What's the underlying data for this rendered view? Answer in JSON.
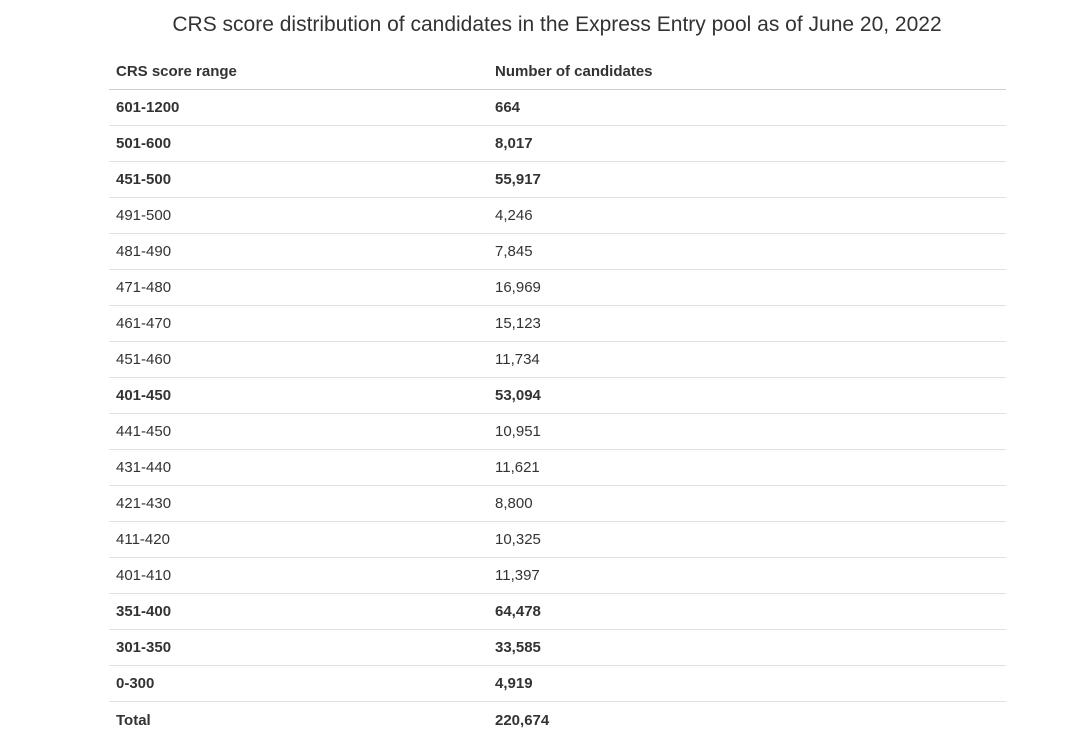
{
  "title": "CRS score distribution of candidates in the Express Entry pool as of June 20, 2022",
  "table": {
    "headers": {
      "range": "CRS score range",
      "count": "Number of candidates"
    },
    "rows": [
      {
        "range": "601-1200",
        "count": "664",
        "bold": true
      },
      {
        "range": "501-600",
        "count": "8,017",
        "bold": true
      },
      {
        "range": "451-500",
        "count": "55,917",
        "bold": true
      },
      {
        "range": "491-500",
        "count": "4,246",
        "bold": false
      },
      {
        "range": "481-490",
        "count": "7,845",
        "bold": false
      },
      {
        "range": "471-480",
        "count": "16,969",
        "bold": false
      },
      {
        "range": "461-470",
        "count": "15,123",
        "bold": false
      },
      {
        "range": "451-460",
        "count": "11,734",
        "bold": false
      },
      {
        "range": "401-450",
        "count": "53,094",
        "bold": true
      },
      {
        "range": "441-450",
        "count": "10,951",
        "bold": false
      },
      {
        "range": "431-440",
        "count": "11,621",
        "bold": false
      },
      {
        "range": "421-430",
        "count": "8,800",
        "bold": false
      },
      {
        "range": "411-420",
        "count": "10,325",
        "bold": false
      },
      {
        "range": "401-410",
        "count": "11,397",
        "bold": false
      },
      {
        "range": "351-400",
        "count": "64,478",
        "bold": true
      },
      {
        "range": "301-350",
        "count": "33,585",
        "bold": true
      },
      {
        "range": "0-300",
        "count": "4,919",
        "bold": true
      },
      {
        "range": "Total",
        "count": "220,674",
        "bold": true
      }
    ]
  }
}
